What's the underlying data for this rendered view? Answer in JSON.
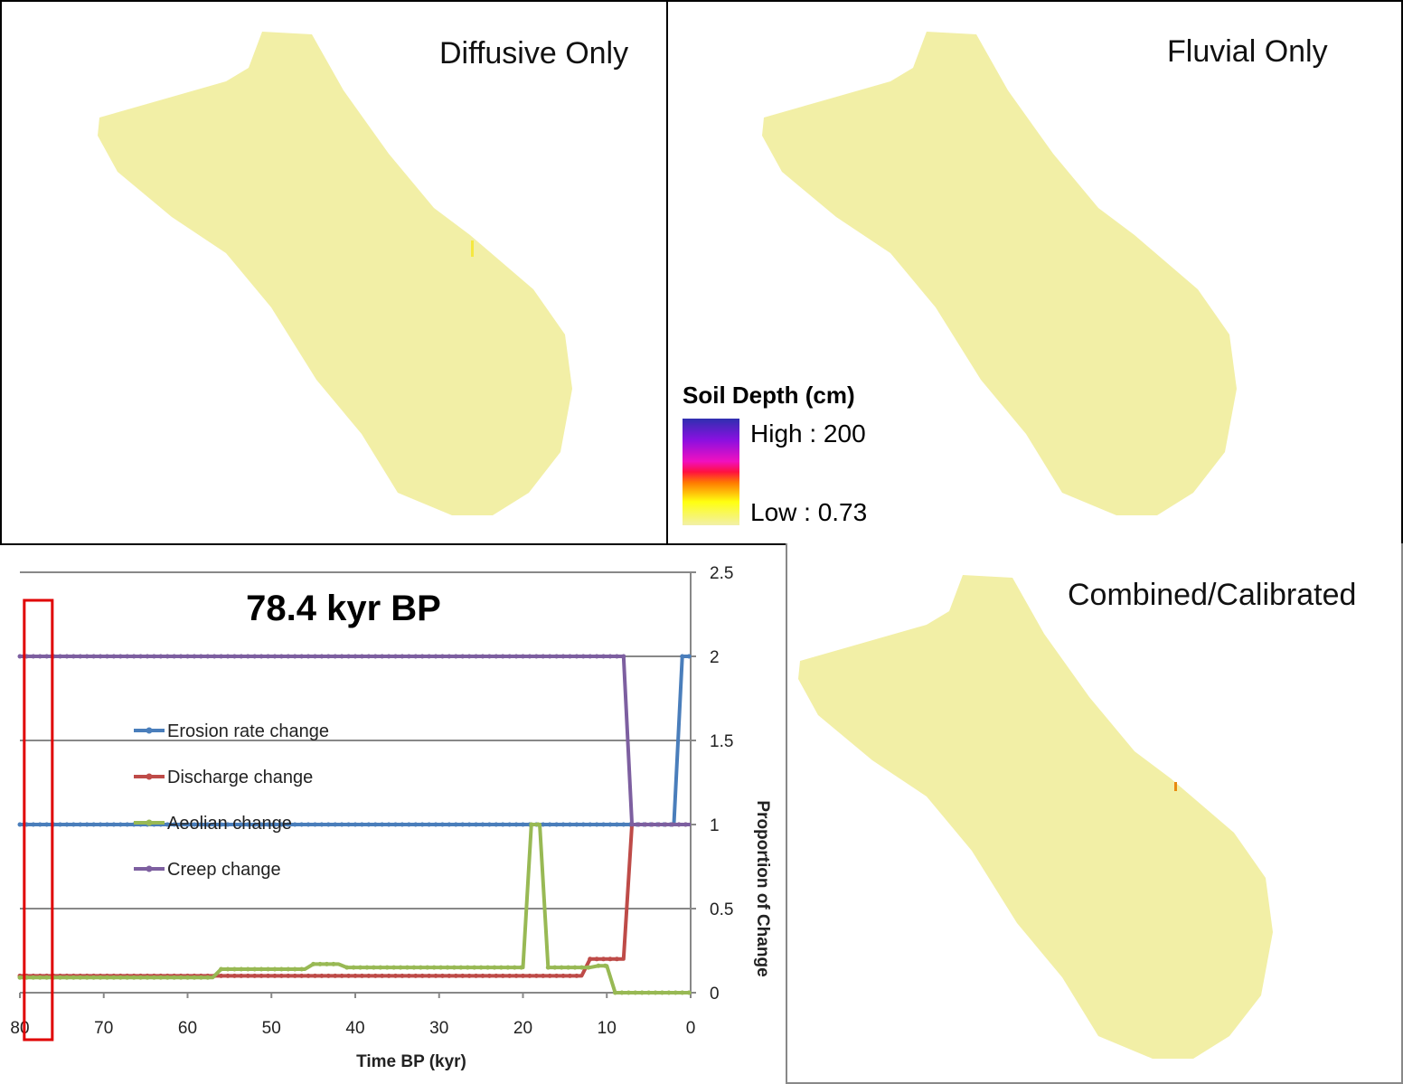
{
  "panels": {
    "diffusive": {
      "title": "Diffusive Only"
    },
    "fluvial": {
      "title": "Fluvial Only"
    },
    "combined": {
      "title": "Combined/Calibrated"
    }
  },
  "legend": {
    "title": "Soil Depth (cm)",
    "high": "High : 200",
    "low": "Low : 0.73"
  },
  "colors": {
    "map_fill": "#f2efa6",
    "erosion": "#4a7ebb",
    "discharge": "#be4b48",
    "aeolian": "#98b954",
    "creep": "#7d5fa0",
    "marker": "#e00000"
  },
  "chart_data": {
    "type": "line",
    "title": "78.4 kyr BP",
    "xlabel": "Time BP (kyr)",
    "ylabel": "Proportion of Change",
    "xlim": [
      80,
      0
    ],
    "ylim": [
      0,
      2.5
    ],
    "xticks": [
      "80",
      "70",
      "60",
      "50",
      "40",
      "30",
      "20",
      "10",
      "0"
    ],
    "yticks": [
      "0",
      "0.5",
      "1",
      "1.5",
      "2",
      "2.5"
    ],
    "grid": true,
    "legend_position": "center-left",
    "current_time": 78.4,
    "series": [
      {
        "name": "Erosion rate change",
        "color_key": "erosion",
        "points": [
          [
            80,
            1
          ],
          [
            2,
            1
          ],
          [
            1,
            2
          ],
          [
            0,
            2
          ]
        ]
      },
      {
        "name": "Discharge change",
        "color_key": "discharge",
        "points": [
          [
            80,
            0.1
          ],
          [
            13,
            0.1
          ],
          [
            12,
            0.2
          ],
          [
            8,
            0.2
          ],
          [
            7,
            1
          ],
          [
            0,
            1
          ]
        ]
      },
      {
        "name": "Aeolian change",
        "color_key": "aeolian",
        "points": [
          [
            80,
            0.09
          ],
          [
            57,
            0.09
          ],
          [
            56,
            0.14
          ],
          [
            46,
            0.14
          ],
          [
            45,
            0.17
          ],
          [
            42,
            0.17
          ],
          [
            41,
            0.15
          ],
          [
            20,
            0.15
          ],
          [
            19,
            1
          ],
          [
            18,
            1
          ],
          [
            17,
            0.15
          ],
          [
            12,
            0.15
          ],
          [
            11,
            0.16
          ],
          [
            10,
            0.16
          ],
          [
            9,
            0
          ],
          [
            0,
            0
          ]
        ]
      },
      {
        "name": "Creep change",
        "color_key": "creep",
        "points": [
          [
            80,
            2
          ],
          [
            8,
            2
          ],
          [
            7,
            1
          ],
          [
            0,
            1
          ]
        ]
      }
    ]
  }
}
